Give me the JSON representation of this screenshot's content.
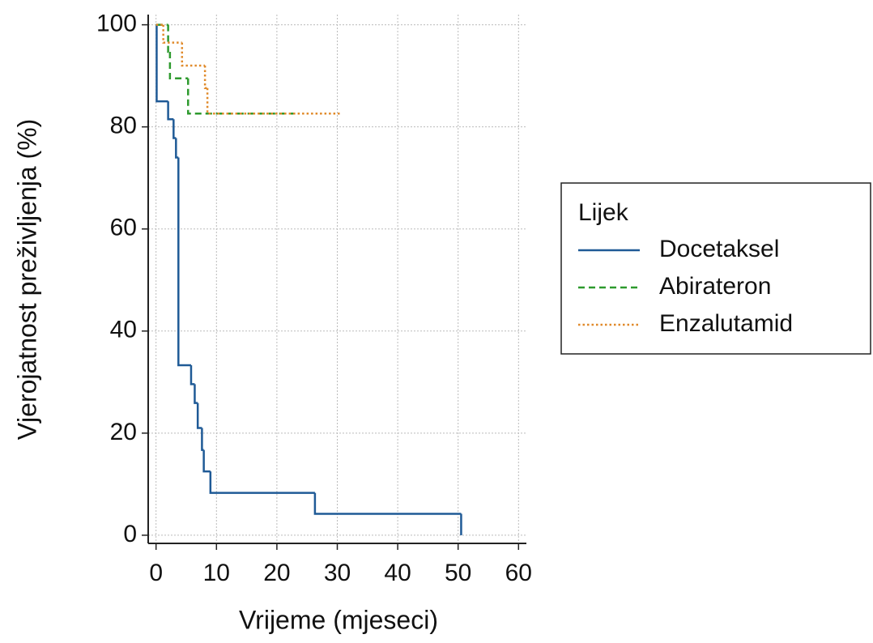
{
  "chart_data": {
    "type": "step",
    "xlabel": "Vrijeme (mjeseci)",
    "ylabel": "Vjerojatnost preživljenja (%)",
    "legend_title": "Lijek",
    "legend": "right",
    "grid": true,
    "xlim": [
      -1.3,
      61.3
    ],
    "xticks": [
      0,
      10,
      20,
      30,
      40,
      50,
      60
    ],
    "ylim": [
      -1.6,
      102
    ],
    "yticks": [
      0,
      20,
      40,
      60,
      80,
      100
    ],
    "series": [
      {
        "name": "Docetaksel",
        "color": "#1f5a96",
        "linestyle": "solid",
        "x": [
          0,
          0.1,
          2,
          2.9,
          3.3,
          3.7,
          5.8,
          6.4,
          6.9,
          7.6,
          7.9,
          9.0,
          26.3,
          50.5
        ],
        "values": [
          100,
          85,
          81.5,
          77.8,
          74,
          33.3,
          29.6,
          25.9,
          21,
          16.7,
          12.5,
          8.3,
          4.2,
          0
        ]
      },
      {
        "name": "Abirateron",
        "color": "#2e9a2e",
        "linestyle": "dashed",
        "x": [
          0,
          2.0,
          2.3,
          5.3,
          22.8
        ],
        "values": [
          100,
          94.7,
          89.5,
          82.6,
          82.6
        ]
      },
      {
        "name": "Enzalutamid",
        "color": "#e08a2a",
        "linestyle": "dotted",
        "x": [
          0,
          1.2,
          4.3,
          8.1,
          8.5,
          30.4
        ],
        "values": [
          100,
          96.5,
          92,
          87.6,
          82.6,
          82.6
        ]
      }
    ]
  }
}
